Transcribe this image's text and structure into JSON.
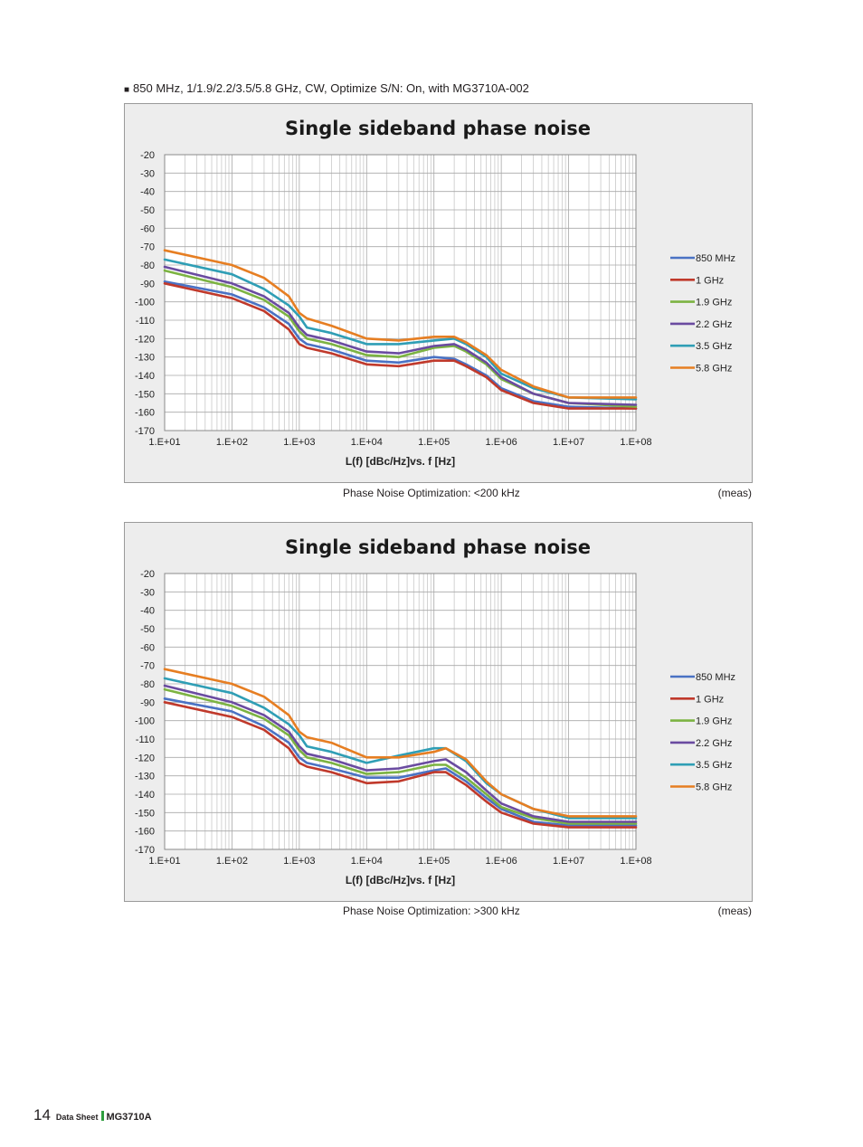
{
  "page": {
    "heading": "850 MHz, 1/1.9/2.2/3.5/5.8 GHz, CW, Optimize S/N: On, with MG3710A-002",
    "bullet": "■",
    "footer": {
      "page_number": "14",
      "doc_type": "Data Sheet",
      "model": "MG3710A"
    }
  },
  "captions": [
    {
      "text": "Phase Noise Optimization: <200 kHz",
      "meas": "(meas)"
    },
    {
      "text": "Phase Noise Optimization: >300 kHz",
      "meas": "(meas)"
    }
  ],
  "chart_data": [
    {
      "type": "line",
      "title": "Single sideband phase noise",
      "xlabel": "L(f) [dBc/Hz]vs. f [Hz]",
      "ylabel": "",
      "x_scale": "log",
      "xlim": [
        10,
        100000000
      ],
      "ylim": [
        -170,
        -20
      ],
      "grid": true,
      "legend_position": "right",
      "x_ticks": [
        "1.E+01",
        "1.E+02",
        "1.E+03",
        "1.E+04",
        "1.E+05",
        "1.E+06",
        "1.E+07",
        "1.E+08"
      ],
      "y_ticks": [
        "-20",
        "-30",
        "-40",
        "-50",
        "-60",
        "-70",
        "-80",
        "-90",
        "-100",
        "-110",
        "-120",
        "-130",
        "-140",
        "-150",
        "-160",
        "-170"
      ],
      "x": [
        10,
        100,
        300,
        700,
        1000,
        1300,
        3000,
        10000,
        30000,
        100000,
        200000,
        300000,
        600000,
        1000000,
        3000000,
        10000000,
        100000000
      ],
      "series": [
        {
          "name": "850 MHz",
          "color": "#4a72c4",
          "values": [
            -89,
            -96,
            -103,
            -112,
            -120,
            -123,
            -126,
            -132,
            -133,
            -130,
            -131,
            -134,
            -140,
            -147,
            -154,
            -157,
            -158
          ]
        },
        {
          "name": "1 GHz",
          "color": "#c0392b",
          "values": [
            -90,
            -98,
            -105,
            -115,
            -123,
            -125,
            -128,
            -134,
            -135,
            -132,
            -132,
            -135,
            -141,
            -148,
            -155,
            -158,
            -158
          ]
        },
        {
          "name": "1.9 GHz",
          "color": "#7cb342",
          "values": [
            -83,
            -92,
            -99,
            -108,
            -116,
            -120,
            -123,
            -129,
            -130,
            -125,
            -124,
            -127,
            -134,
            -142,
            -150,
            -155,
            -157
          ]
        },
        {
          "name": "2.2 GHz",
          "color": "#6a4ba0",
          "values": [
            -81,
            -90,
            -97,
            -106,
            -114,
            -118,
            -121,
            -127,
            -128,
            -124,
            -123,
            -126,
            -133,
            -141,
            -150,
            -155,
            -156
          ]
        },
        {
          "name": "3.5 GHz",
          "color": "#2f9eb5",
          "values": [
            -77,
            -85,
            -93,
            -102,
            -108,
            -114,
            -117,
            -123,
            -123,
            -121,
            -120,
            -123,
            -130,
            -139,
            -147,
            -152,
            -153
          ]
        },
        {
          "name": "5.8 GHz",
          "color": "#e67e22",
          "values": [
            -72,
            -80,
            -87,
            -97,
            -106,
            -109,
            -113,
            -120,
            -121,
            -119,
            -119,
            -122,
            -129,
            -137,
            -146,
            -152,
            -152
          ]
        }
      ]
    },
    {
      "type": "line",
      "title": "Single sideband phase noise",
      "xlabel": "L(f) [dBc/Hz]vs. f [Hz]",
      "ylabel": "",
      "x_scale": "log",
      "xlim": [
        10,
        100000000
      ],
      "ylim": [
        -170,
        -20
      ],
      "grid": true,
      "legend_position": "right",
      "x_ticks": [
        "1.E+01",
        "1.E+02",
        "1.E+03",
        "1.E+04",
        "1.E+05",
        "1.E+06",
        "1.E+07",
        "1.E+08"
      ],
      "y_ticks": [
        "-20",
        "-30",
        "-40",
        "-50",
        "-60",
        "-70",
        "-80",
        "-90",
        "-100",
        "-110",
        "-120",
        "-130",
        "-140",
        "-150",
        "-160",
        "-170"
      ],
      "x": [
        10,
        100,
        300,
        700,
        1000,
        1300,
        3000,
        10000,
        30000,
        100000,
        150000,
        300000,
        600000,
        1000000,
        3000000,
        10000000,
        100000000
      ],
      "series": [
        {
          "name": "850 MHz",
          "color": "#4a72c4",
          "values": [
            -88,
            -95,
            -103,
            -112,
            -120,
            -123,
            -126,
            -131,
            -131,
            -127,
            -126,
            -133,
            -142,
            -148,
            -155,
            -157,
            -157
          ]
        },
        {
          "name": "1 GHz",
          "color": "#c0392b",
          "values": [
            -90,
            -98,
            -105,
            -115,
            -123,
            -125,
            -128,
            -134,
            -133,
            -128,
            -128,
            -135,
            -144,
            -150,
            -156,
            -158,
            -158
          ]
        },
        {
          "name": "1.9 GHz",
          "color": "#7cb342",
          "values": [
            -83,
            -92,
            -99,
            -108,
            -116,
            -120,
            -123,
            -129,
            -128,
            -124,
            -124,
            -131,
            -140,
            -147,
            -153,
            -156,
            -156
          ]
        },
        {
          "name": "2.2 GHz",
          "color": "#6a4ba0",
          "values": [
            -81,
            -90,
            -97,
            -106,
            -114,
            -118,
            -121,
            -127,
            -126,
            -122,
            -121,
            -128,
            -138,
            -145,
            -152,
            -155,
            -155
          ]
        },
        {
          "name": "3.5 GHz",
          "color": "#2f9eb5",
          "values": [
            -77,
            -85,
            -93,
            -102,
            -108,
            -114,
            -117,
            -123,
            -119,
            -115,
            -115,
            -122,
            -134,
            -140,
            -148,
            -153,
            -153
          ]
        },
        {
          "name": "5.8 GHz",
          "color": "#e67e22",
          "values": [
            -72,
            -80,
            -87,
            -97,
            -106,
            -109,
            -112,
            -120,
            -120,
            -117,
            -115,
            -121,
            -133,
            -140,
            -148,
            -152,
            -152
          ]
        }
      ]
    }
  ]
}
